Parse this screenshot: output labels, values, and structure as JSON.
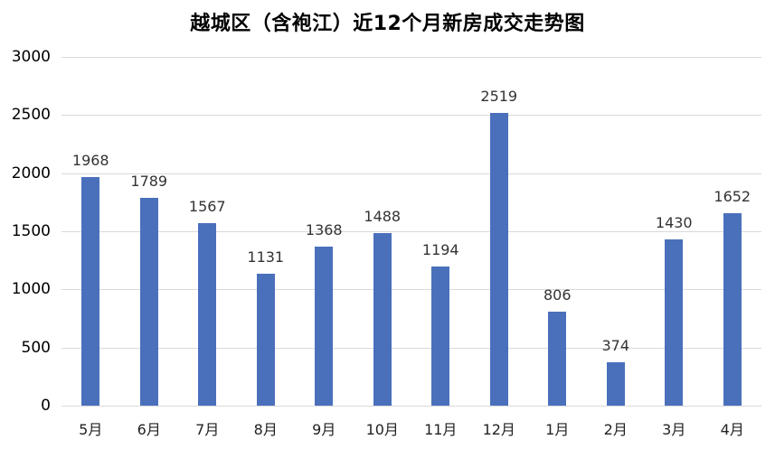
{
  "chart_data": {
    "type": "bar",
    "title": "越城区（含袍江）近12个月新房成交走势图",
    "xlabel": "",
    "ylabel": "",
    "categories": [
      "5月",
      "6月",
      "7月",
      "8月",
      "9月",
      "10月",
      "11月",
      "12月",
      "1月",
      "2月",
      "3月",
      "4月"
    ],
    "values": [
      1968,
      1789,
      1567,
      1131,
      1368,
      1488,
      1194,
      2519,
      806,
      374,
      1430,
      1652
    ],
    "ylim": [
      0,
      3000
    ],
    "yticks": [
      0,
      500,
      1000,
      1500,
      2000,
      2500,
      3000
    ],
    "grid": true,
    "legend": "none",
    "bar_color": "#4a70bc",
    "data_labels": true
  }
}
